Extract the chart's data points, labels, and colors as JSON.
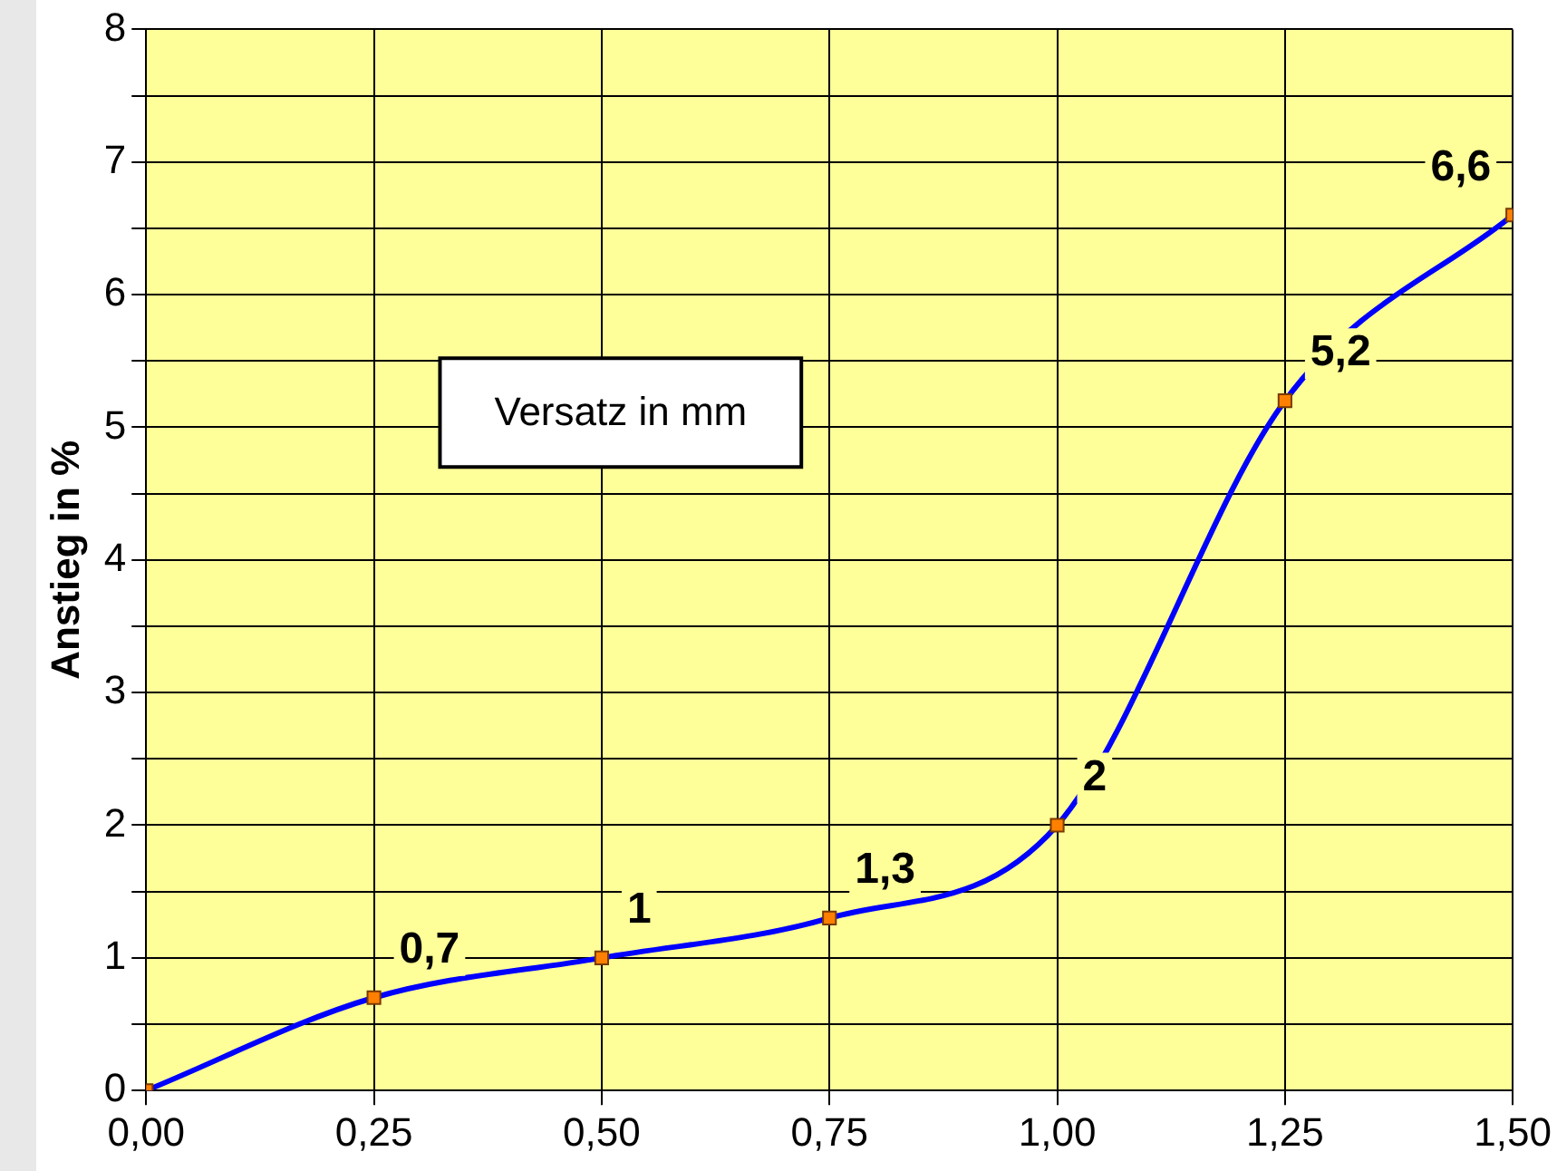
{
  "chart_data": {
    "type": "line",
    "xlabel": "Versatz in mm",
    "ylabel": "Anstieg in %",
    "x": [
      0,
      0.25,
      0.5,
      0.75,
      1,
      1.25,
      1.5
    ],
    "series": [
      {
        "color": "#0000ff",
        "values": [
          0,
          0.7,
          1,
          1.3,
          2,
          5.2,
          6.6
        ]
      }
    ],
    "value_labels": [
      null,
      "0,7",
      "1",
      "1,3",
      "2",
      "5,2",
      "6,6"
    ],
    "xlim": [
      0,
      1.5
    ],
    "xticks": [
      {
        "value": 0,
        "label": "0,00"
      },
      {
        "value": 0.25,
        "label": "0,25"
      },
      {
        "value": 0.5,
        "label": "0,50"
      },
      {
        "value": 0.75,
        "label": "0,75"
      },
      {
        "value": 1,
        "label": "1,00"
      },
      {
        "value": 1.25,
        "label": "1,25"
      },
      {
        "value": 1.5,
        "label": "1,50"
      }
    ],
    "ylim": [
      0,
      8
    ],
    "yticks": [
      0,
      {
        "value": 0.5,
        "label": null
      },
      1,
      {
        "value": 1.5,
        "label": null
      },
      2,
      {
        "value": 2.5,
        "label": null
      },
      3,
      {
        "value": 3.5,
        "label": null
      },
      4,
      {
        "value": 4.5,
        "label": null
      },
      5,
      {
        "value": 5.5,
        "label": null
      },
      6,
      {
        "value": 6.5,
        "label": null
      },
      7,
      {
        "value": 7.5,
        "label": null
      },
      8
    ],
    "grid": true,
    "legend": false,
    "marker": "square",
    "line_style": "solid"
  }
}
